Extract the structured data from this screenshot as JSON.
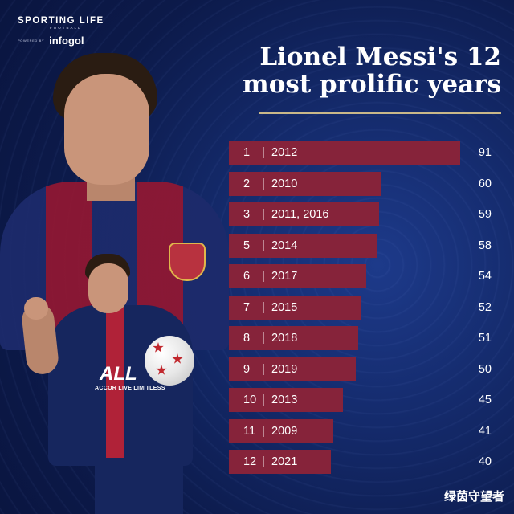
{
  "brand": {
    "name": "SPORTING LIFE",
    "sub": "FOOTBALL",
    "powered_by": "POWERED BY",
    "partner": "infogol"
  },
  "header": {
    "title_line1": "Lionel Messi's 12",
    "title_line2": "most prolific years"
  },
  "jersey_text": {
    "sponsor": "ALL",
    "sponsor_sub": "ACCOR LIVE LIMITLESS"
  },
  "watermark": "绿茵守望者",
  "colors": {
    "background": "#0d1b4c",
    "bar": "#86233a",
    "rule": "#c9b889",
    "text": "#ffffff"
  },
  "chart_data": {
    "type": "bar",
    "orientation": "horizontal",
    "title": "Lionel Messi's 12 most prolific years",
    "ranks": [
      "1",
      "2",
      "3",
      "5",
      "6",
      "7",
      "8",
      "9",
      "10",
      "11",
      "12"
    ],
    "categories": [
      "2012",
      "2010",
      "2011, 2016",
      "2014",
      "2017",
      "2015",
      "2018",
      "2019",
      "2013",
      "2009",
      "2021"
    ],
    "values": [
      91,
      60,
      59,
      58,
      54,
      52,
      51,
      50,
      45,
      41,
      40
    ],
    "xlim": [
      0,
      91
    ],
    "grid": false,
    "legend": "none"
  }
}
